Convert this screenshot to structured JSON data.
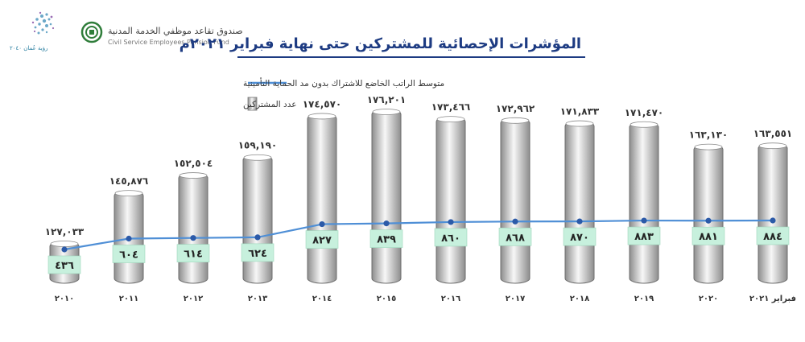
{
  "header": {
    "title": "المؤشرات الإحصائية للمشتركين حتى نهاية فبراير ٢٠٢١م",
    "fund_name_ar": "صندوق تقاعد موظفي الخدمة المدنية",
    "fund_name_en": "Civil Service Employees Pension Fund",
    "vision_logo_text": "رؤية عُمان ٢٠٤٠"
  },
  "colors": {
    "title": "#1d3b82",
    "line": "#4f8fd6",
    "point_label_bg": "#c7f0dd",
    "bar_light": "#f7f7f7",
    "bar_dark": "#8d8d8d"
  },
  "chart_data": {
    "type": "bar",
    "categories": [
      "٢٠١٠",
      "٢٠١١",
      "٢٠١٢",
      "٢٠١٣",
      "٢٠١٤",
      "٢٠١٥",
      "٢٠١٦",
      "٢٠١٧",
      "٢٠١٨",
      "٢٠١٩",
      "٢٠٢٠",
      "فبراير ٢٠٢١"
    ],
    "series": [
      {
        "name": "عدد المشتركين",
        "type": "bar",
        "values": [
          127033,
          145876,
          152504,
          159190,
          174570,
          176201,
          173466,
          172962,
          171833,
          171470,
          163130,
          163551
        ],
        "labels": [
          "١٢٧,٠٣٣",
          "١٤٥,٨٧٦",
          "١٥٢,٥٠٤",
          "١٥٩,١٩٠",
          "١٧٤,٥٧٠",
          "١٧٦,٢٠١",
          "١٧٣,٤٦٦",
          "١٧٢,٩٦٢",
          "١٧١,٨٣٣",
          "١٧١,٤٧٠",
          "١٦٣,١٣٠",
          "١٦٣,٥٥١"
        ]
      },
      {
        "name": "متوسط الراتب الخاضع للاشتراك بدون مد الحماية التأمينية",
        "type": "line",
        "values": [
          436,
          604,
          614,
          624,
          827,
          839,
          860,
          868,
          870,
          883,
          881,
          884
        ],
        "labels": [
          "٤٣٦",
          "٦٠٤",
          "٦١٤",
          "٦٢٤",
          "٨٢٧",
          "٨٣٩",
          "٨٦٠",
          "٨٦٨",
          "٨٧٠",
          "٨٨٣",
          "٨٨١",
          "٨٨٤"
        ]
      }
    ],
    "legend_position": "top-left",
    "grid": false
  }
}
